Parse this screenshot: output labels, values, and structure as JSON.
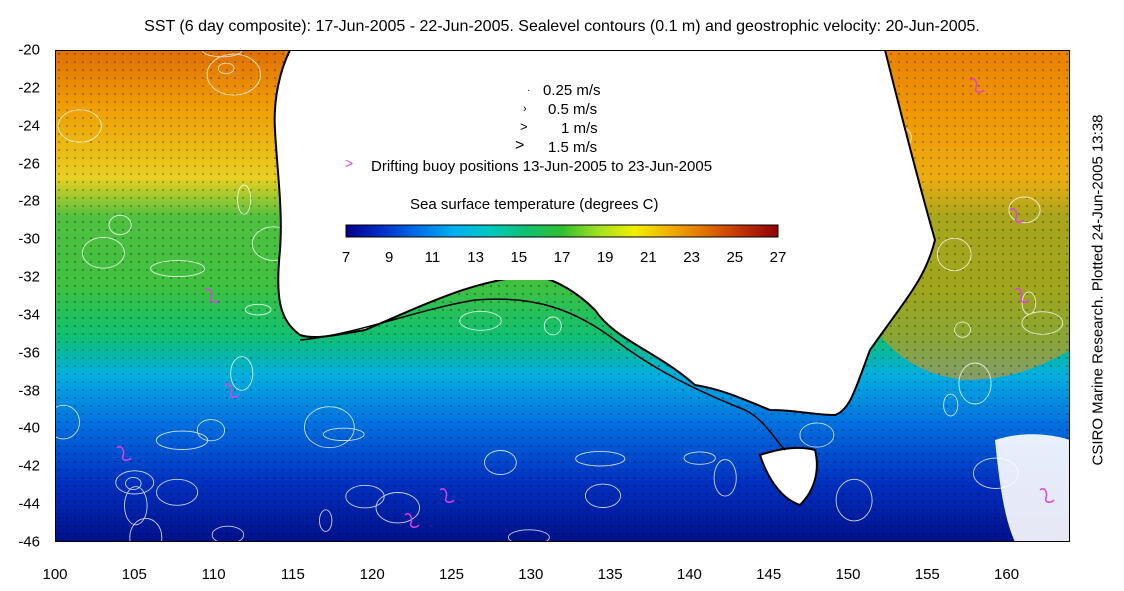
{
  "title": "SST (6 day composite): 17-Jun-2005 - 22-Jun-2005. Sealevel contours (0.1 m) and geostrophic velocity: 20-Jun-2005.",
  "side_label": "CSIRO Marine Research. Plotted 24-Jun-2005 13:38",
  "map": {
    "lon_range": [
      100,
      164
    ],
    "lat_range": [
      -46,
      -20
    ],
    "x_ticks": [
      "100",
      "105",
      "110",
      "115",
      "120",
      "125",
      "130",
      "135",
      "140",
      "145",
      "150",
      "155",
      "160"
    ],
    "y_ticks": [
      "-20",
      "-22",
      "-24",
      "-26",
      "-28",
      "-30",
      "-32",
      "-34",
      "-36",
      "-38",
      "-40",
      "-42",
      "-44",
      "-46"
    ],
    "land_color": "#ffffff",
    "coast_color": "#000000",
    "contour_color": "#ffffff"
  },
  "legend": {
    "velocity_scale": [
      "0.25 m/s",
      "0.5 m/s",
      "1 m/s",
      "1.5 m/s"
    ],
    "buoy_symbol": ">",
    "buoy_label": "Drifting buoy positions 13-Jun-2005 to 23-Jun-2005",
    "buoy_color": "#e040e0"
  },
  "colorbar": {
    "title": "Sea surface temperature (degrees C)",
    "ticks": [
      "7",
      "9",
      "11",
      "13",
      "15",
      "17",
      "19",
      "21",
      "23",
      "25",
      "27"
    ],
    "colors": [
      "#00008a",
      "#0030c8",
      "#0070e8",
      "#00b0f0",
      "#00c8c0",
      "#10c070",
      "#30c030",
      "#a0e020",
      "#f0f000",
      "#f0b000",
      "#e07000",
      "#c03000",
      "#900000"
    ]
  }
}
